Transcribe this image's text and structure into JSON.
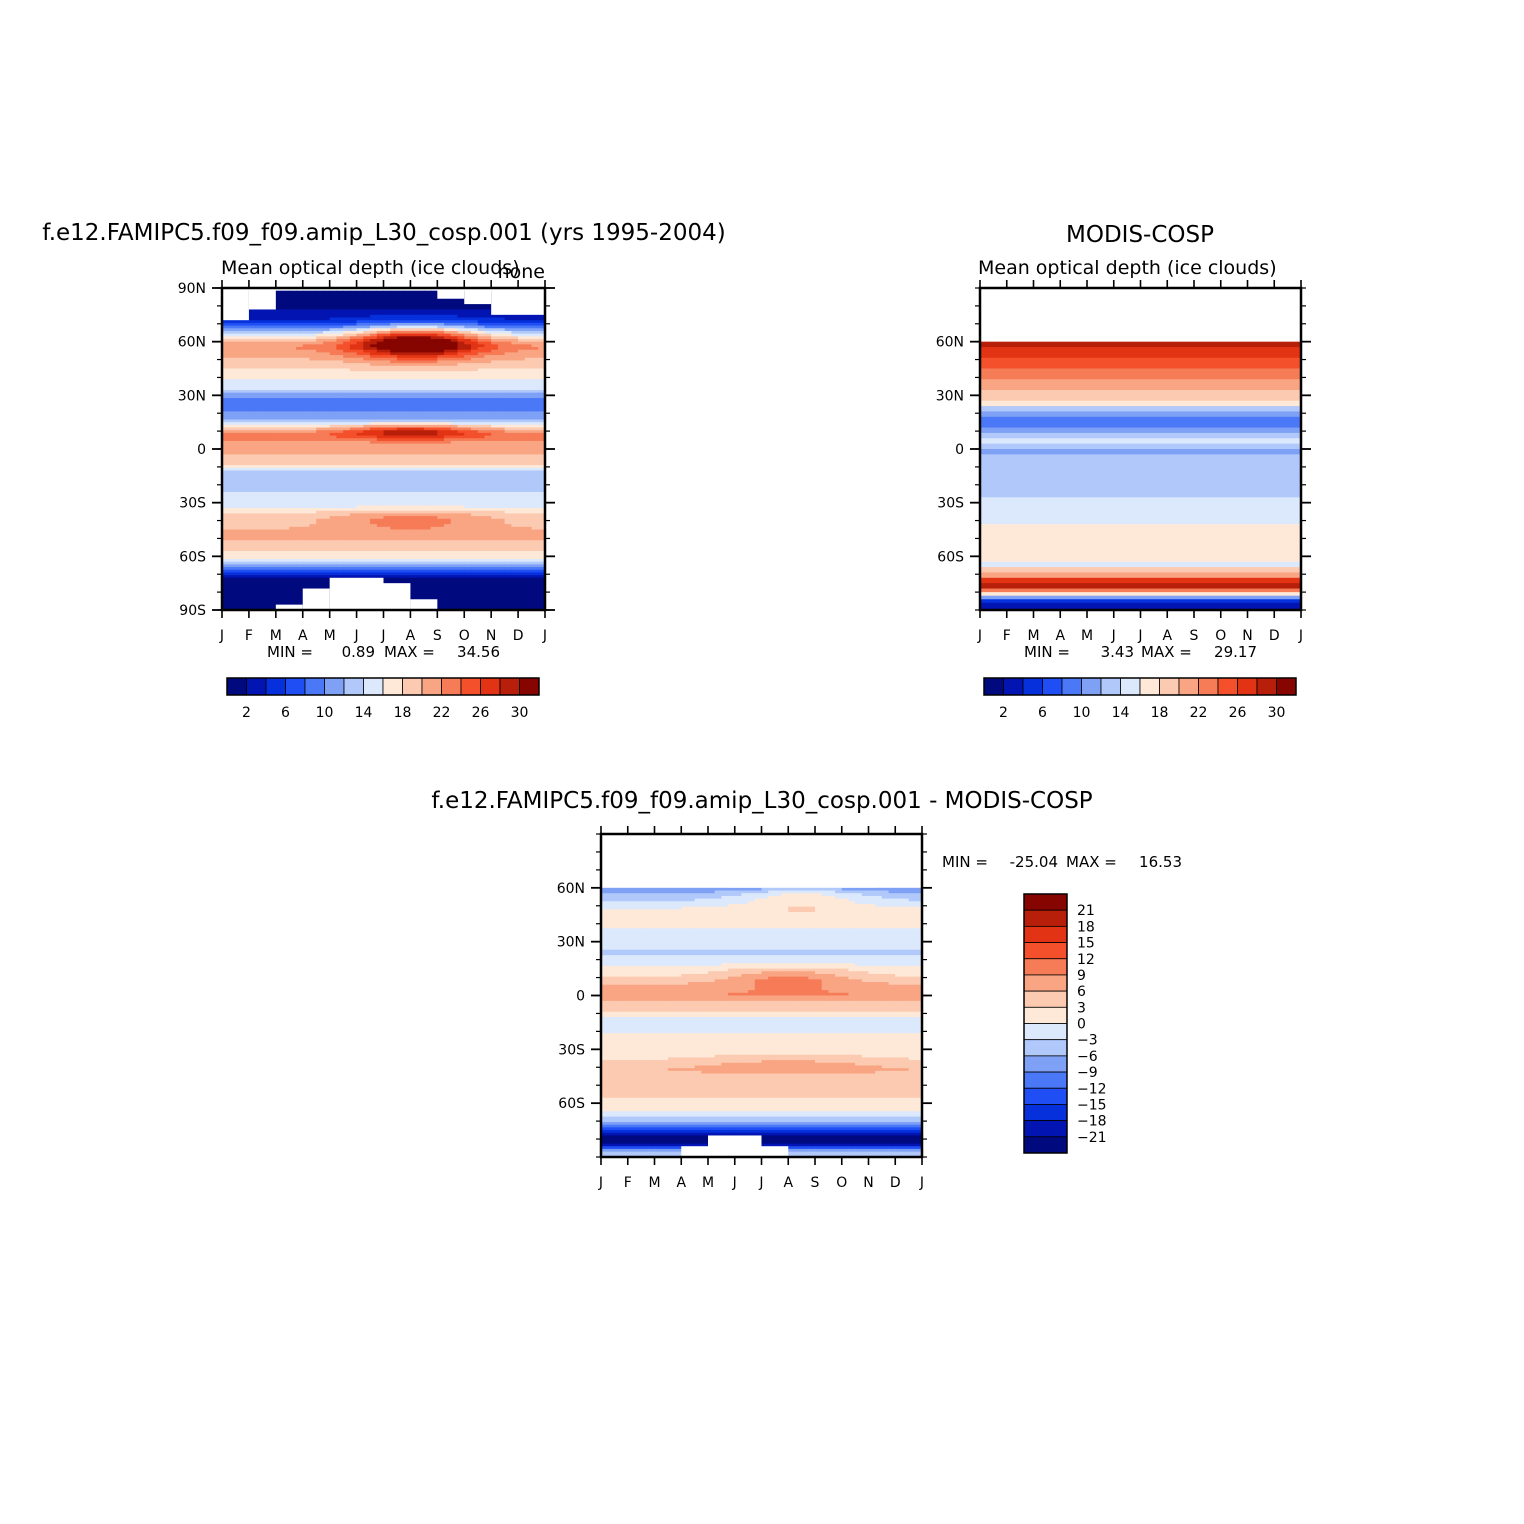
{
  "colors": {
    "palette": [
      "#000a7e",
      "#0214b2",
      "#0530dc",
      "#1e4ef4",
      "#4a78f6",
      "#7ea1f6",
      "#b0c8fa",
      "#dce9fd",
      "#fee9d9",
      "#fccab0",
      "#f9a583",
      "#f67b57",
      "#f4502c",
      "#e23414",
      "#b81f0a",
      "#860500"
    ],
    "frame": "#000000"
  },
  "chart_data": [
    {
      "type": "heatmap",
      "title": "f.e12.FAMIPC5.f09_f09.amip_L30_cosp.001 (yrs 1995-2004)",
      "subtitle": "Mean optical depth (ice clouds)",
      "corner_label": "none",
      "x_ticks": [
        "J",
        "F",
        "M",
        "A",
        "M",
        "J",
        "J",
        "A",
        "S",
        "O",
        "N",
        "D",
        "J"
      ],
      "y_ticks": [
        "90N",
        "60N",
        "30N",
        "0",
        "30S",
        "60S",
        "90S"
      ],
      "ylim": [
        -90,
        90
      ],
      "stats_min_label": "MIN =",
      "stats_min": "0.89",
      "stats_max_label": "MAX =",
      "stats_max": "34.56",
      "colorbar_labels": [
        "2",
        "6",
        "10",
        "14",
        "18",
        "22",
        "26",
        "30"
      ],
      "levels": [
        0,
        2,
        4,
        6,
        8,
        10,
        12,
        14,
        16,
        18,
        20,
        22,
        24,
        26,
        28,
        30,
        32
      ],
      "lat": [
        87,
        84,
        81,
        78,
        75,
        72,
        69,
        66,
        63,
        60,
        57,
        54,
        51,
        48,
        45,
        42,
        39,
        36,
        33,
        30,
        27,
        24,
        21,
        18,
        15,
        12,
        9,
        6,
        3,
        0,
        -3,
        -6,
        -9,
        -12,
        -15,
        -18,
        -21,
        -24,
        -27,
        -30,
        -33,
        -36,
        -39,
        -42,
        -45,
        -48,
        -51,
        -54,
        -57,
        -60,
        -63,
        -66,
        -69,
        -72,
        -75,
        -78,
        -81,
        -84,
        -87
      ],
      "profile": [
        1,
        1,
        1,
        2,
        3,
        4,
        7,
        12,
        16,
        20,
        22,
        21,
        20,
        19,
        18,
        17,
        16,
        15,
        14,
        11,
        9,
        8,
        10,
        11,
        13,
        18,
        22,
        23,
        21,
        22,
        20,
        19,
        18,
        14,
        12,
        13,
        13,
        14,
        15,
        14,
        16,
        18,
        19,
        19,
        20,
        21,
        20,
        19,
        18,
        17,
        14,
        9,
        5,
        2,
        1,
        1,
        1,
        1,
        1
      ],
      "summer_peak": [
        {
          "lat": 60,
          "month": 7.2,
          "amp": 15,
          "wlat": 9,
          "wm": 2.3
        },
        {
          "lat": 10,
          "month": 7,
          "amp": 8,
          "wlat": 4,
          "wm": 2.5
        },
        {
          "lat": -40,
          "month": 7,
          "amp": 4,
          "wlat": 6,
          "wm": 3
        }
      ],
      "missing": [
        {
          "m0": 0,
          "m1": 1,
          "lat_from": 72
        },
        {
          "m0": 1,
          "m1": 2,
          "lat_from": 78
        },
        {
          "m0": 2,
          "m1": 8,
          "lat_from": 90
        },
        {
          "m0": 8,
          "m1": 9,
          "lat_from": 84
        },
        {
          "m0": 9,
          "m1": 10,
          "lat_from": 81
        },
        {
          "m0": 10,
          "m1": 12,
          "lat_from": 75
        },
        {
          "m0": 2,
          "m1": 3,
          "lat_to": -87
        },
        {
          "m0": 3,
          "m1": 4,
          "lat_to": -78
        },
        {
          "m0": 4,
          "m1": 6,
          "lat_to": -72
        },
        {
          "m0": 6,
          "m1": 7,
          "lat_to": -75
        },
        {
          "m0": 7,
          "m1": 8,
          "lat_to": -84
        }
      ]
    },
    {
      "type": "heatmap",
      "title": "MODIS-COSP",
      "subtitle": "Mean optical depth (ice clouds)",
      "x_ticks": [
        "J",
        "F",
        "M",
        "A",
        "M",
        "J",
        "J",
        "A",
        "S",
        "O",
        "N",
        "D",
        "J"
      ],
      "y_ticks": [
        "60N",
        "30N",
        "0",
        "30S",
        "60S"
      ],
      "ylim": [
        -90,
        90
      ],
      "stats_min_label": "MIN =",
      "stats_min": "3.43",
      "stats_max_label": "MAX =",
      "stats_max": "29.17",
      "colorbar_labels": [
        "2",
        "6",
        "10",
        "14",
        "18",
        "22",
        "26",
        "30"
      ],
      "levels": [
        0,
        2,
        4,
        6,
        8,
        10,
        12,
        14,
        16,
        18,
        20,
        22,
        24,
        26,
        28,
        30,
        32
      ],
      "bands": [
        {
          "lat0": 90,
          "lat1": 60,
          "value": null
        },
        {
          "lat0": 60,
          "lat1": 57,
          "value": 29
        },
        {
          "lat0": 57,
          "lat1": 51,
          "value": 27
        },
        {
          "lat0": 51,
          "lat1": 45,
          "value": 25
        },
        {
          "lat0": 45,
          "lat1": 39,
          "value": 23
        },
        {
          "lat0": 39,
          "lat1": 33,
          "value": 21
        },
        {
          "lat0": 33,
          "lat1": 27,
          "value": 19
        },
        {
          "lat0": 27,
          "lat1": 24,
          "value": 17
        },
        {
          "lat0": 24,
          "lat1": 21,
          "value": 13
        },
        {
          "lat0": 21,
          "lat1": 18,
          "value": 11
        },
        {
          "lat0": 18,
          "lat1": 12,
          "value": 9
        },
        {
          "lat0": 12,
          "lat1": 9,
          "value": 11
        },
        {
          "lat0": 9,
          "lat1": 6,
          "value": 13
        },
        {
          "lat0": 6,
          "lat1": 3,
          "value": 15
        },
        {
          "lat0": 3,
          "lat1": 0,
          "value": 13
        },
        {
          "lat0": 0,
          "lat1": -3,
          "value": 11
        },
        {
          "lat0": -3,
          "lat1": -27,
          "value": 13
        },
        {
          "lat0": -27,
          "lat1": -42,
          "value": 15
        },
        {
          "lat0": -42,
          "lat1": -63,
          "value": 17
        },
        {
          "lat0": -63,
          "lat1": -66,
          "value": 15
        },
        {
          "lat0": -66,
          "lat1": -69,
          "value": 19
        },
        {
          "lat0": -69,
          "lat1": -72,
          "value": 21
        },
        {
          "lat0": -72,
          "lat1": -75,
          "value": 27
        },
        {
          "lat0": -75,
          "lat1": -78,
          "value": 29
        },
        {
          "lat0": -78,
          "lat1": -80,
          "value": 23
        },
        {
          "lat0": -80,
          "lat1": -82,
          "value": 17
        },
        {
          "lat0": -82,
          "lat1": -84,
          "value": 11
        },
        {
          "lat0": -84,
          "lat1": -86,
          "value": 5
        },
        {
          "lat0": -86,
          "lat1": -90,
          "value": 3
        }
      ]
    },
    {
      "type": "heatmap",
      "title": "f.e12.FAMIPC5.f09_f09.amip_L30_cosp.001  -  MODIS-COSP",
      "x_ticks": [
        "J",
        "F",
        "M",
        "A",
        "M",
        "J",
        "J",
        "A",
        "S",
        "O",
        "N",
        "D",
        "J"
      ],
      "y_ticks": [
        "60N",
        "30N",
        "0",
        "30S",
        "60S"
      ],
      "ylim": [
        -90,
        90
      ],
      "stats_min_label": "MIN =",
      "stats_min": "-25.04",
      "stats_max_label": "MAX =",
      "stats_max": "16.53",
      "colorbar_labels": [
        "21",
        "18",
        "15",
        "12",
        "9",
        "6",
        "3",
        "0",
        "-3",
        "-6",
        "-9",
        "-12",
        "-15",
        "-18",
        "-21"
      ],
      "levels": [
        -24,
        -21,
        -18,
        -15,
        -12,
        -9,
        -6,
        -3,
        0,
        3,
        6,
        9,
        12,
        15,
        18,
        21,
        24
      ],
      "lat": [
        60,
        57,
        54,
        51,
        48,
        45,
        42,
        39,
        36,
        33,
        30,
        27,
        24,
        21,
        18,
        15,
        12,
        9,
        6,
        3,
        0,
        -3,
        -6,
        -9,
        -12,
        -15,
        -18,
        -21,
        -24,
        -27,
        -30,
        -33,
        -36,
        -39,
        -42,
        -45,
        -48,
        -51,
        -54,
        -57,
        -60,
        -63,
        -66,
        -69,
        -72,
        -75,
        -78,
        -81,
        -84,
        -87
      ],
      "profile": [
        -10,
        -6,
        -4,
        -2,
        0.5,
        1.5,
        2,
        1,
        -1,
        -2,
        -1,
        -1,
        -4,
        -2,
        -1,
        1,
        2,
        4,
        6,
        8,
        9,
        6,
        5,
        3,
        0,
        -1,
        -1,
        0,
        1,
        2,
        1,
        2,
        3,
        5,
        6,
        4,
        5,
        5,
        4,
        3,
        2,
        1,
        -1,
        -4,
        -9,
        -14,
        -22,
        -24,
        -18,
        -6
      ],
      "summer_peak": [
        {
          "lat": 10,
          "month": 7,
          "amp": 6,
          "wlat": 6,
          "wm": 2.5
        },
        {
          "lat": 55,
          "month": 7.5,
          "amp": 6,
          "wlat": 8,
          "wm": 2.5
        },
        {
          "lat": -38,
          "month": 7,
          "amp": 3,
          "wlat": 6,
          "wm": 3
        }
      ],
      "missing": [
        {
          "m0": 0,
          "m1": 12,
          "lat_from": 90,
          "lat_to": 60
        },
        {
          "m0": 3,
          "m1": 4,
          "lat_to": -84
        },
        {
          "m0": 4,
          "m1": 6,
          "lat_to": -78
        },
        {
          "m0": 6,
          "m1": 7,
          "lat_to": -84
        }
      ]
    }
  ]
}
